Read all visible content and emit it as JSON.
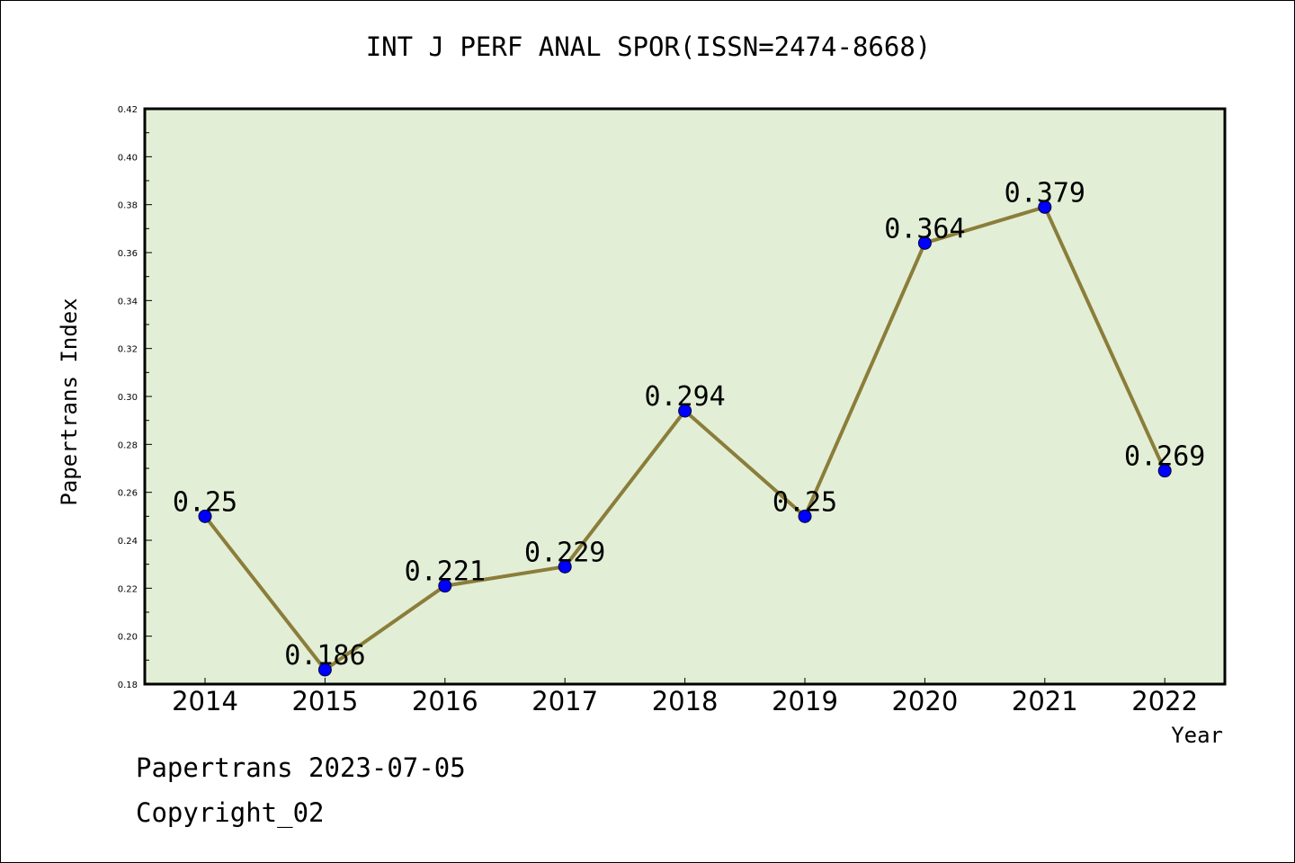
{
  "colors": {
    "plot_background": "#e2efd6",
    "line": "#8b7d3a",
    "marker": "#0000ff",
    "frame": "#000000"
  },
  "footer": {
    "date_text": "Papertrans 2023-07-05",
    "copyright_text": "Copyright_02"
  },
  "chart_data": {
    "type": "line",
    "title": "INT J PERF ANAL SPOR(ISSN=2474-8668)",
    "xlabel": "Year",
    "ylabel": "Papertrans Index",
    "categories": [
      "2014",
      "2015",
      "2016",
      "2017",
      "2018",
      "2019",
      "2020",
      "2021",
      "2022"
    ],
    "series": [
      {
        "values": [
          0.25,
          0.186,
          0.221,
          0.229,
          0.294,
          0.25,
          0.364,
          0.379,
          0.269
        ],
        "data_labels": [
          "0.25",
          "0.186",
          "0.221",
          "0.229",
          "0.294",
          "0.25",
          "0.364",
          "0.379",
          "0.269"
        ]
      }
    ],
    "ylim": [
      0.18,
      0.42
    ],
    "yticks": [
      0.18,
      0.2,
      0.22,
      0.24,
      0.26,
      0.28,
      0.3,
      0.32,
      0.34,
      0.36,
      0.38,
      0.4,
      0.42
    ],
    "ytick_labels": [
      "0.18",
      "0.20",
      "0.22",
      "0.24",
      "0.26",
      "0.28",
      "0.30",
      "0.32",
      "0.34",
      "0.36",
      "0.38",
      "0.40",
      "0.42"
    ],
    "grid": false,
    "legend": "none",
    "markers": true
  }
}
